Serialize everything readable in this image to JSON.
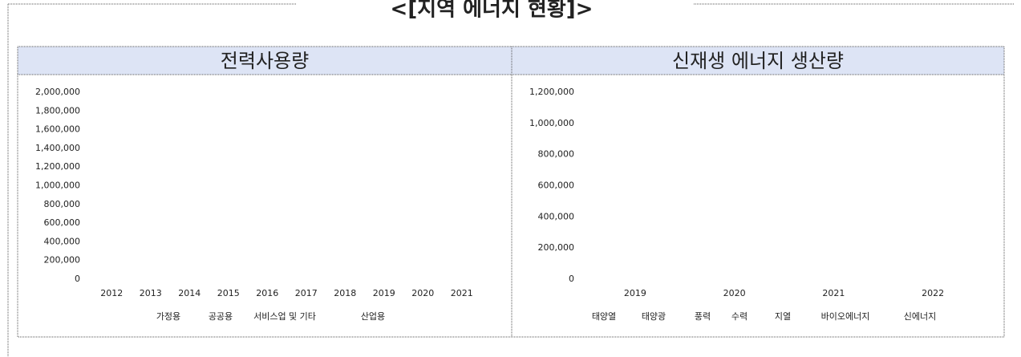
{
  "title": "<[지역 에너지 현황]>",
  "chart_data": [
    {
      "type": "bar",
      "title": "전력사용량",
      "categories": [
        "2012",
        "2013",
        "2014",
        "2015",
        "2016",
        "2017",
        "2018",
        "2019",
        "2020",
        "2021"
      ],
      "series": [
        {
          "name": "가정용"
        },
        {
          "name": "공공용"
        },
        {
          "name": "서비스업 및 기타"
        },
        {
          "name": "산업용"
        }
      ],
      "ylim": [
        0,
        2000000
      ],
      "yticks": [
        0,
        {
          "value": 200000,
          "label": "200,000"
        },
        {
          "value": 400000,
          "label": "400,000"
        },
        {
          "value": 600000,
          "label": "600,000"
        },
        {
          "value": 800000,
          "label": "800,000"
        },
        {
          "value": 1000000,
          "label": "1,000,000"
        },
        {
          "value": 1200000,
          "label": "1,200,000"
        },
        {
          "value": 1400000,
          "label": "1,400,000"
        },
        {
          "value": 1600000,
          "label": "1,600,000"
        },
        {
          "value": 1800000,
          "label": "1,800,000"
        },
        {
          "value": 2000000,
          "label": "2,000,000"
        }
      ]
    },
    {
      "type": "bar",
      "title": "신재생 에너지 생산량",
      "categories": [
        "2019",
        "2020",
        "2021",
        "2022"
      ],
      "series": [
        {
          "name": "태양열"
        },
        {
          "name": "태양광"
        },
        {
          "name": "풍력"
        },
        {
          "name": "수력"
        },
        {
          "name": "지열"
        },
        {
          "name": "바이오에너지"
        },
        {
          "name": "신에너지"
        }
      ],
      "ylim": [
        0,
        1200000
      ],
      "yticks": [
        0,
        {
          "value": 200000,
          "label": "200,000"
        },
        {
          "value": 400000,
          "label": "400,000"
        },
        {
          "value": 600000,
          "label": "600,000"
        },
        {
          "value": 800000,
          "label": "800,000"
        },
        {
          "value": 1000000,
          "label": "1,000,000"
        },
        {
          "value": 1200000,
          "label": "1,200,000"
        }
      ]
    }
  ]
}
